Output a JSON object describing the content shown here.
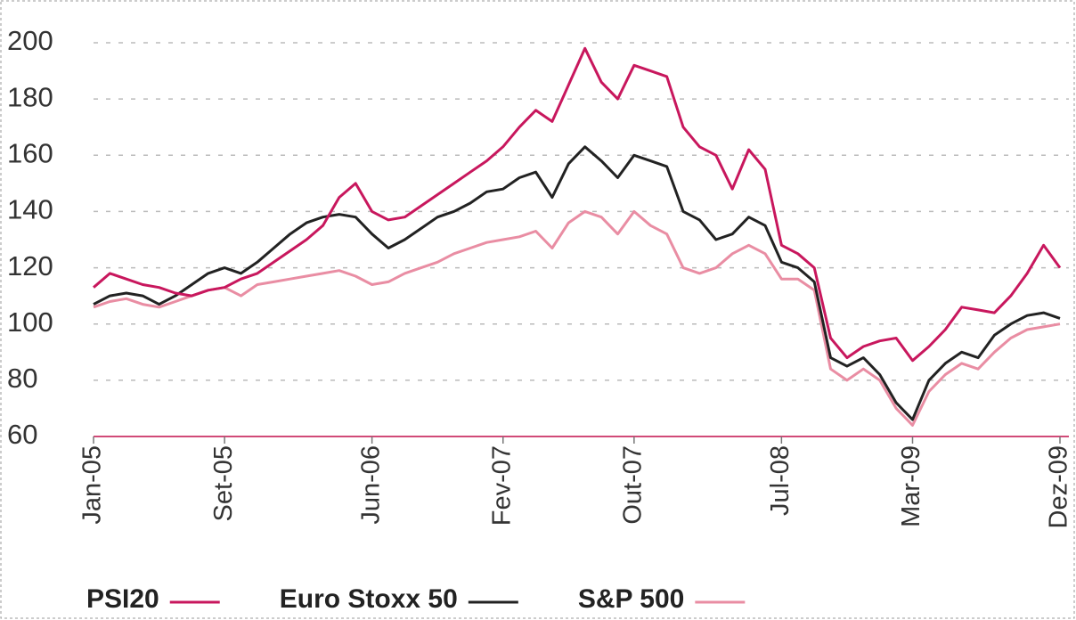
{
  "chart_data": {
    "type": "line",
    "categories": [
      "Jan-05",
      null,
      null,
      null,
      null,
      null,
      null,
      null,
      "Set-05",
      null,
      null,
      null,
      null,
      null,
      null,
      null,
      null,
      "Jun-06",
      null,
      null,
      null,
      null,
      null,
      null,
      null,
      "Fev-07",
      null,
      null,
      null,
      null,
      null,
      null,
      null,
      "Out-07",
      null,
      null,
      null,
      null,
      null,
      null,
      null,
      null,
      "Jul-08",
      null,
      null,
      null,
      null,
      null,
      null,
      null,
      "Mar-09",
      null,
      null,
      null,
      null,
      null,
      null,
      null,
      null,
      "Dez-09"
    ],
    "series": [
      {
        "name": "PSI20",
        "color": "#c8175d",
        "values": [
          113,
          118,
          116,
          114,
          113,
          111,
          110,
          112,
          113,
          116,
          118,
          122,
          126,
          130,
          135,
          145,
          150,
          140,
          137,
          138,
          142,
          146,
          150,
          154,
          158,
          163,
          170,
          176,
          172,
          185,
          198,
          186,
          180,
          192,
          190,
          188,
          170,
          163,
          160,
          148,
          162,
          155,
          128,
          125,
          120,
          95,
          88,
          92,
          94,
          95,
          87,
          92,
          98,
          106,
          105,
          104,
          110,
          118,
          128,
          120
        ]
      },
      {
        "name": "Euro Stoxx 50",
        "color": "#222222",
        "values": [
          107,
          110,
          111,
          110,
          107,
          110,
          114,
          118,
          120,
          118,
          122,
          127,
          132,
          136,
          138,
          139,
          138,
          132,
          127,
          130,
          134,
          138,
          140,
          143,
          147,
          148,
          152,
          154,
          145,
          157,
          163,
          158,
          152,
          160,
          158,
          156,
          140,
          137,
          130,
          132,
          138,
          135,
          122,
          120,
          115,
          88,
          85,
          88,
          82,
          72,
          66,
          80,
          86,
          90,
          88,
          96,
          100,
          103,
          104,
          102
        ]
      },
      {
        "name": "S&P 500",
        "color": "#e98da3",
        "values": [
          106,
          108,
          109,
          107,
          106,
          108,
          110,
          112,
          113,
          110,
          114,
          115,
          116,
          117,
          118,
          119,
          117,
          114,
          115,
          118,
          120,
          122,
          125,
          127,
          129,
          130,
          131,
          133,
          127,
          136,
          140,
          138,
          132,
          140,
          135,
          132,
          120,
          118,
          120,
          125,
          128,
          125,
          116,
          116,
          112,
          84,
          80,
          84,
          80,
          70,
          64,
          76,
          82,
          86,
          84,
          90,
          95,
          98,
          99,
          100
        ]
      }
    ],
    "ylim": [
      60,
      200
    ],
    "yticks": [
      60,
      80,
      100,
      120,
      140,
      160,
      180,
      200
    ],
    "grid": true
  }
}
